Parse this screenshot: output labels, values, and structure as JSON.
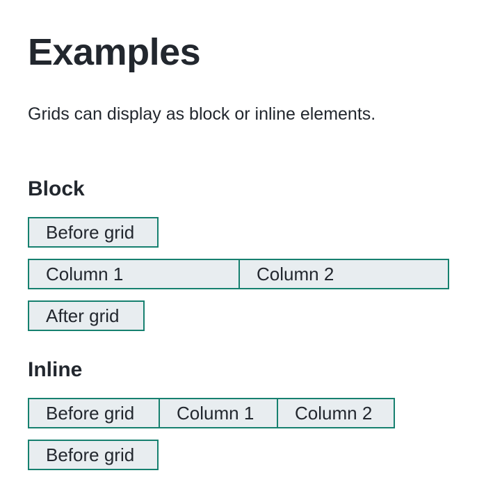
{
  "page": {
    "title": "Examples",
    "intro": "Grids can display as block or inline elements."
  },
  "block_section": {
    "heading": "Block",
    "before_label": "Before grid",
    "columns": [
      "Column 1",
      "Column 2"
    ],
    "after_label": "After grid"
  },
  "inline_section": {
    "heading": "Inline",
    "row_items": [
      "Before grid",
      "Column 1",
      "Column 2"
    ],
    "after_label": "Before grid"
  },
  "colors": {
    "box_background": "#e8edf0",
    "box_border": "#16806f",
    "text": "#22272e"
  }
}
